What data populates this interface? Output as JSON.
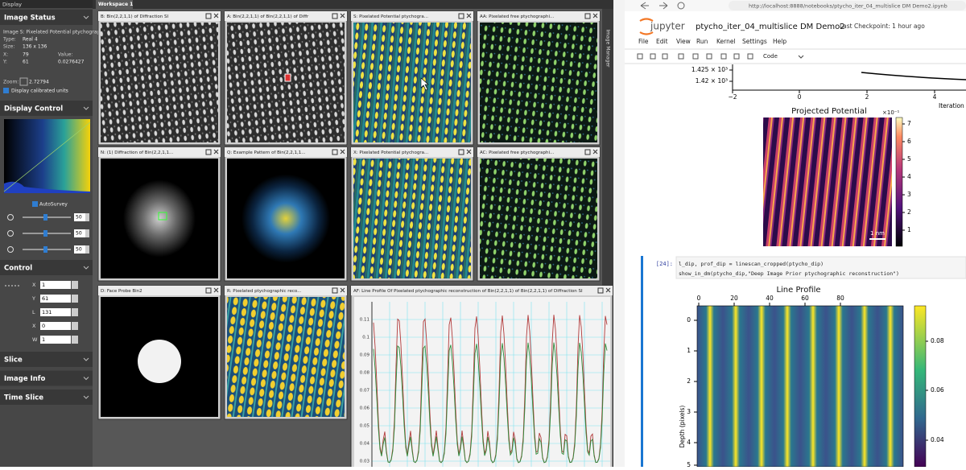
{
  "display_panel": {
    "title": "Display",
    "image_status": {
      "header": "Image Status",
      "name": "Image S: Pixelated Potential ptychograp",
      "type_label": "Type:",
      "type": "Real 4",
      "size_label": "Size:",
      "size": "136 x 136",
      "x_label": "X:",
      "x": "79",
      "y_label": "Y:",
      "y": "61",
      "value_label": "Value:",
      "value": "0.0276427",
      "zoom_label": "Zoom:",
      "zoom": "2.72794",
      "calibrated": "Display calibrated units"
    },
    "display_control": {
      "header": "Display Control",
      "autosurvey": "AutoSurvey",
      "sliders": [
        "50",
        "50",
        "50"
      ]
    },
    "control": {
      "header": "Control",
      "fields": [
        {
          "label": "X",
          "value": "1"
        },
        {
          "label": "Y",
          "value": "61"
        },
        {
          "label": "L",
          "value": "131"
        },
        {
          "label": "X",
          "value": "0"
        },
        {
          "label": "W",
          "value": "1"
        }
      ]
    },
    "sections": [
      "Slice",
      "Image Info",
      "Time Slice"
    ]
  },
  "workspace": {
    "tab": "Workspace 1",
    "windows": [
      "B: Bin(2,2,1,1) of Diffraction SI",
      "A: Bin(2,2,1,1) of Bin(2,2,1,1) of Diffr",
      "S: Pixelated Potential ptychogra...",
      "AA: Pixelated free ptychographi...",
      "N: (1) Diffraction of Bin(2,2,1,1...",
      "Q: Example Pattern of Bin(2,2,1,1...",
      "X: Pixelated Potential ptychogra...",
      "AC: Pixelated free ptychographi...",
      "D: Face Probe Bin2",
      "R: Pixelated ptychographic reco..."
    ],
    "profile": {
      "title": "AF: Line Profile Of Pixelated ptychographic reconstruction of Bin(2,2,1,1) of Bin(2,2,1,1) of Diffraction SI",
      "yticks": [
        "0.11",
        "0.1",
        "0.09",
        "0.08",
        "0.07",
        "0.06",
        "0.05",
        "0.04",
        "0.03"
      ]
    },
    "side_tab": "Image Manager"
  },
  "browser": {
    "url": "http://localhost:8888/notebooks/ptycho_iter_04_multislice DM Demo2.ipynb"
  },
  "notebook": {
    "logo": "jupyter",
    "title": "ptycho_iter_04_multislice DM Demo2",
    "checkpoint": "Last Checkpoint: 1 hour ago",
    "menu": [
      "File",
      "Edit",
      "View",
      "Run",
      "Kernel",
      "Settings",
      "Help"
    ],
    "cell_type": "Code",
    "loss_plot": {
      "yticks": [
        "1.425 × 10³",
        "1.42 × 10³"
      ],
      "xticks": [
        "−2",
        "0",
        "2",
        "4"
      ],
      "xlabel": "Iteration"
    },
    "potential_plot": {
      "title": "Projected Potential",
      "scale_factor": "×10⁻¹",
      "colorbar_ticks": [
        "7",
        "6",
        "5",
        "4",
        "3",
        "2",
        "1"
      ],
      "scalebar": "1 nm"
    },
    "cell": {
      "prompt": "[24]:",
      "code": [
        "l_dip, prof_dip = linescan_cropped(ptycho_dip)",
        "show_in_dm(ptycho_dip,\"Deep Image Prior ptychographic reconstruction\")"
      ]
    },
    "profile_plot": {
      "title": "Line Profile",
      "xticks": [
        "0",
        "20",
        "40",
        "60",
        "80"
      ],
      "yticks": [
        "0",
        "1",
        "2",
        "3",
        "4",
        "5"
      ],
      "ylabel": "Depth (pixels)",
      "colorbar_ticks": [
        "0.08",
        "0.06",
        "0.04"
      ]
    }
  }
}
